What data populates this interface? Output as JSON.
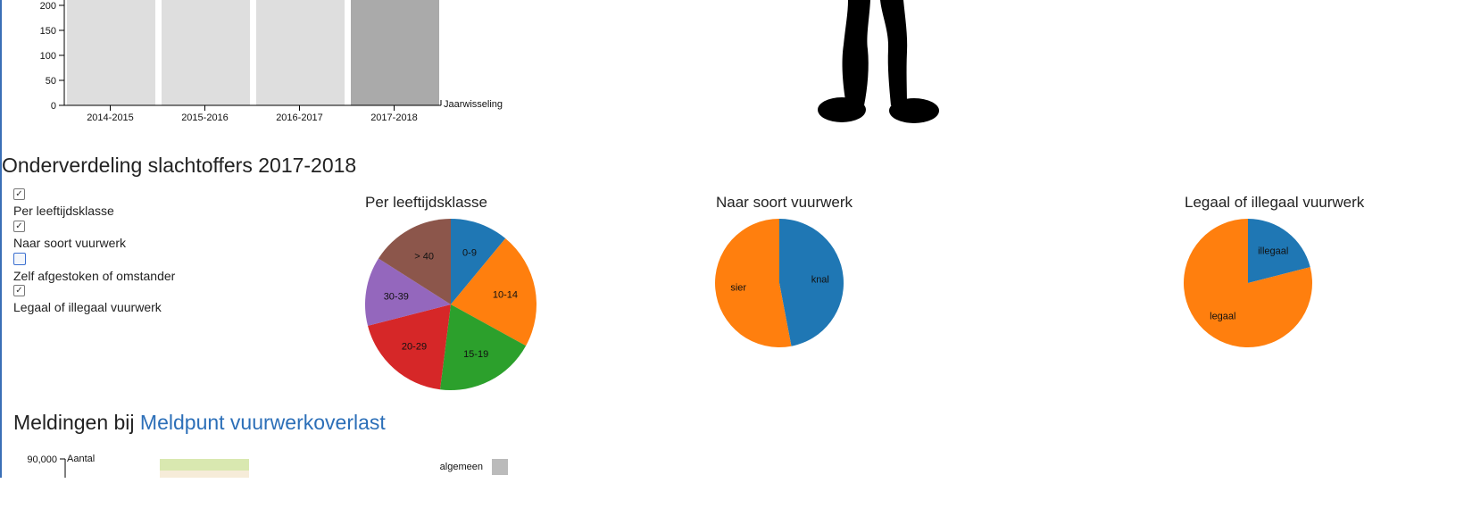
{
  "top_chart": {
    "type": "bar",
    "categories": [
      "2014-2015",
      "2015-2016",
      "2016-2017",
      "2017-2018"
    ],
    "values": [
      300,
      300,
      300,
      300
    ],
    "y_ticks": [
      "0",
      "50",
      "100",
      "150",
      "200"
    ],
    "xlabel": "Jaarwisseling",
    "colors": [
      "#dedede",
      "#dedede",
      "#dedede",
      "#aaaaaa"
    ]
  },
  "section_title": "Onderverdeling slachtoffers 2017-2018",
  "checkboxes": [
    {
      "label": "Per leeftijdsklasse",
      "checked": true
    },
    {
      "label": "Naar soort vuurwerk",
      "checked": true
    },
    {
      "label": "Zelf afgestoken of omstander",
      "checked": false
    },
    {
      "label": "Legaal of illegaal vuurwerk",
      "checked": true
    }
  ],
  "chart_data": [
    {
      "type": "pie",
      "title": "Per leeftijdsklasse",
      "labels": [
        "0-9",
        "10-14",
        "15-19",
        "20-29",
        "30-39",
        "> 40"
      ],
      "values": [
        11,
        22,
        19,
        19,
        13,
        16
      ],
      "colors": [
        "#1f77b4",
        "#ff7f0e",
        "#2ca02c",
        "#d62728",
        "#9467bd",
        "#8c564b"
      ]
    },
    {
      "type": "pie",
      "title": "Naar soort vuurwerk",
      "labels": [
        "knal",
        "sier"
      ],
      "values": [
        47,
        53
      ],
      "colors": [
        "#1f77b4",
        "#ff7f0e"
      ]
    },
    {
      "type": "pie",
      "title": "Legaal of illegaal vuurwerk",
      "labels": [
        "illegaal",
        "legaal"
      ],
      "values": [
        21,
        79
      ],
      "colors": [
        "#1f77b4",
        "#ff7f0e"
      ]
    }
  ],
  "meldingen": {
    "prefix": "Meldingen bij ",
    "link": "Meldpunt vuurwerkoverlast",
    "y_tick": "90,000",
    "y_label": "Aantal",
    "legend_label": "algemeen",
    "legend_color": "#bbbbbb",
    "bar_colors": [
      "#d9e8b0",
      "#f6ecd9"
    ]
  }
}
